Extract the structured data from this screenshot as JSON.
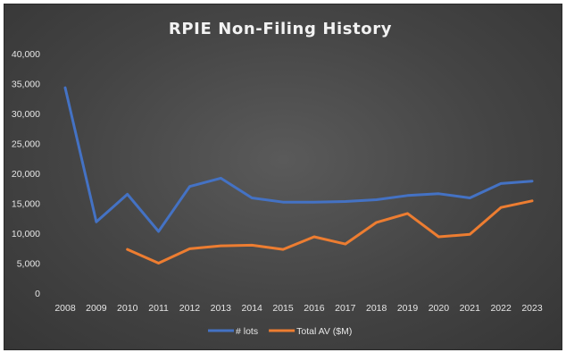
{
  "chart_data": {
    "type": "line",
    "title": "RPIE Non-Filing History",
    "categories": [
      "2008",
      "2009",
      "2010",
      "2011",
      "2012",
      "2013",
      "2014",
      "2015",
      "2016",
      "2017",
      "2018",
      "2019",
      "2020",
      "2021",
      "2022",
      "2023"
    ],
    "series": [
      {
        "name": "# lots",
        "color": "#4472c4",
        "values": [
          34300,
          11900,
          16500,
          10300,
          17800,
          19200,
          15900,
          15200,
          15200,
          15300,
          15600,
          16300,
          16600,
          15900,
          18300,
          18700
        ]
      },
      {
        "name": "Total AV ($M)",
        "color": "#ed7d31",
        "values": [
          null,
          null,
          7300,
          5000,
          7400,
          7900,
          8000,
          7300,
          9400,
          8200,
          11800,
          13300,
          9400,
          9800,
          14300,
          15400
        ]
      }
    ],
    "y_ticks": [
      "0",
      "5,000",
      "10,000",
      "15,000",
      "20,000",
      "25,000",
      "30,000",
      "35,000",
      "40,000"
    ],
    "ylim": [
      0,
      40000
    ],
    "grid": false,
    "legend_position": "bottom"
  }
}
